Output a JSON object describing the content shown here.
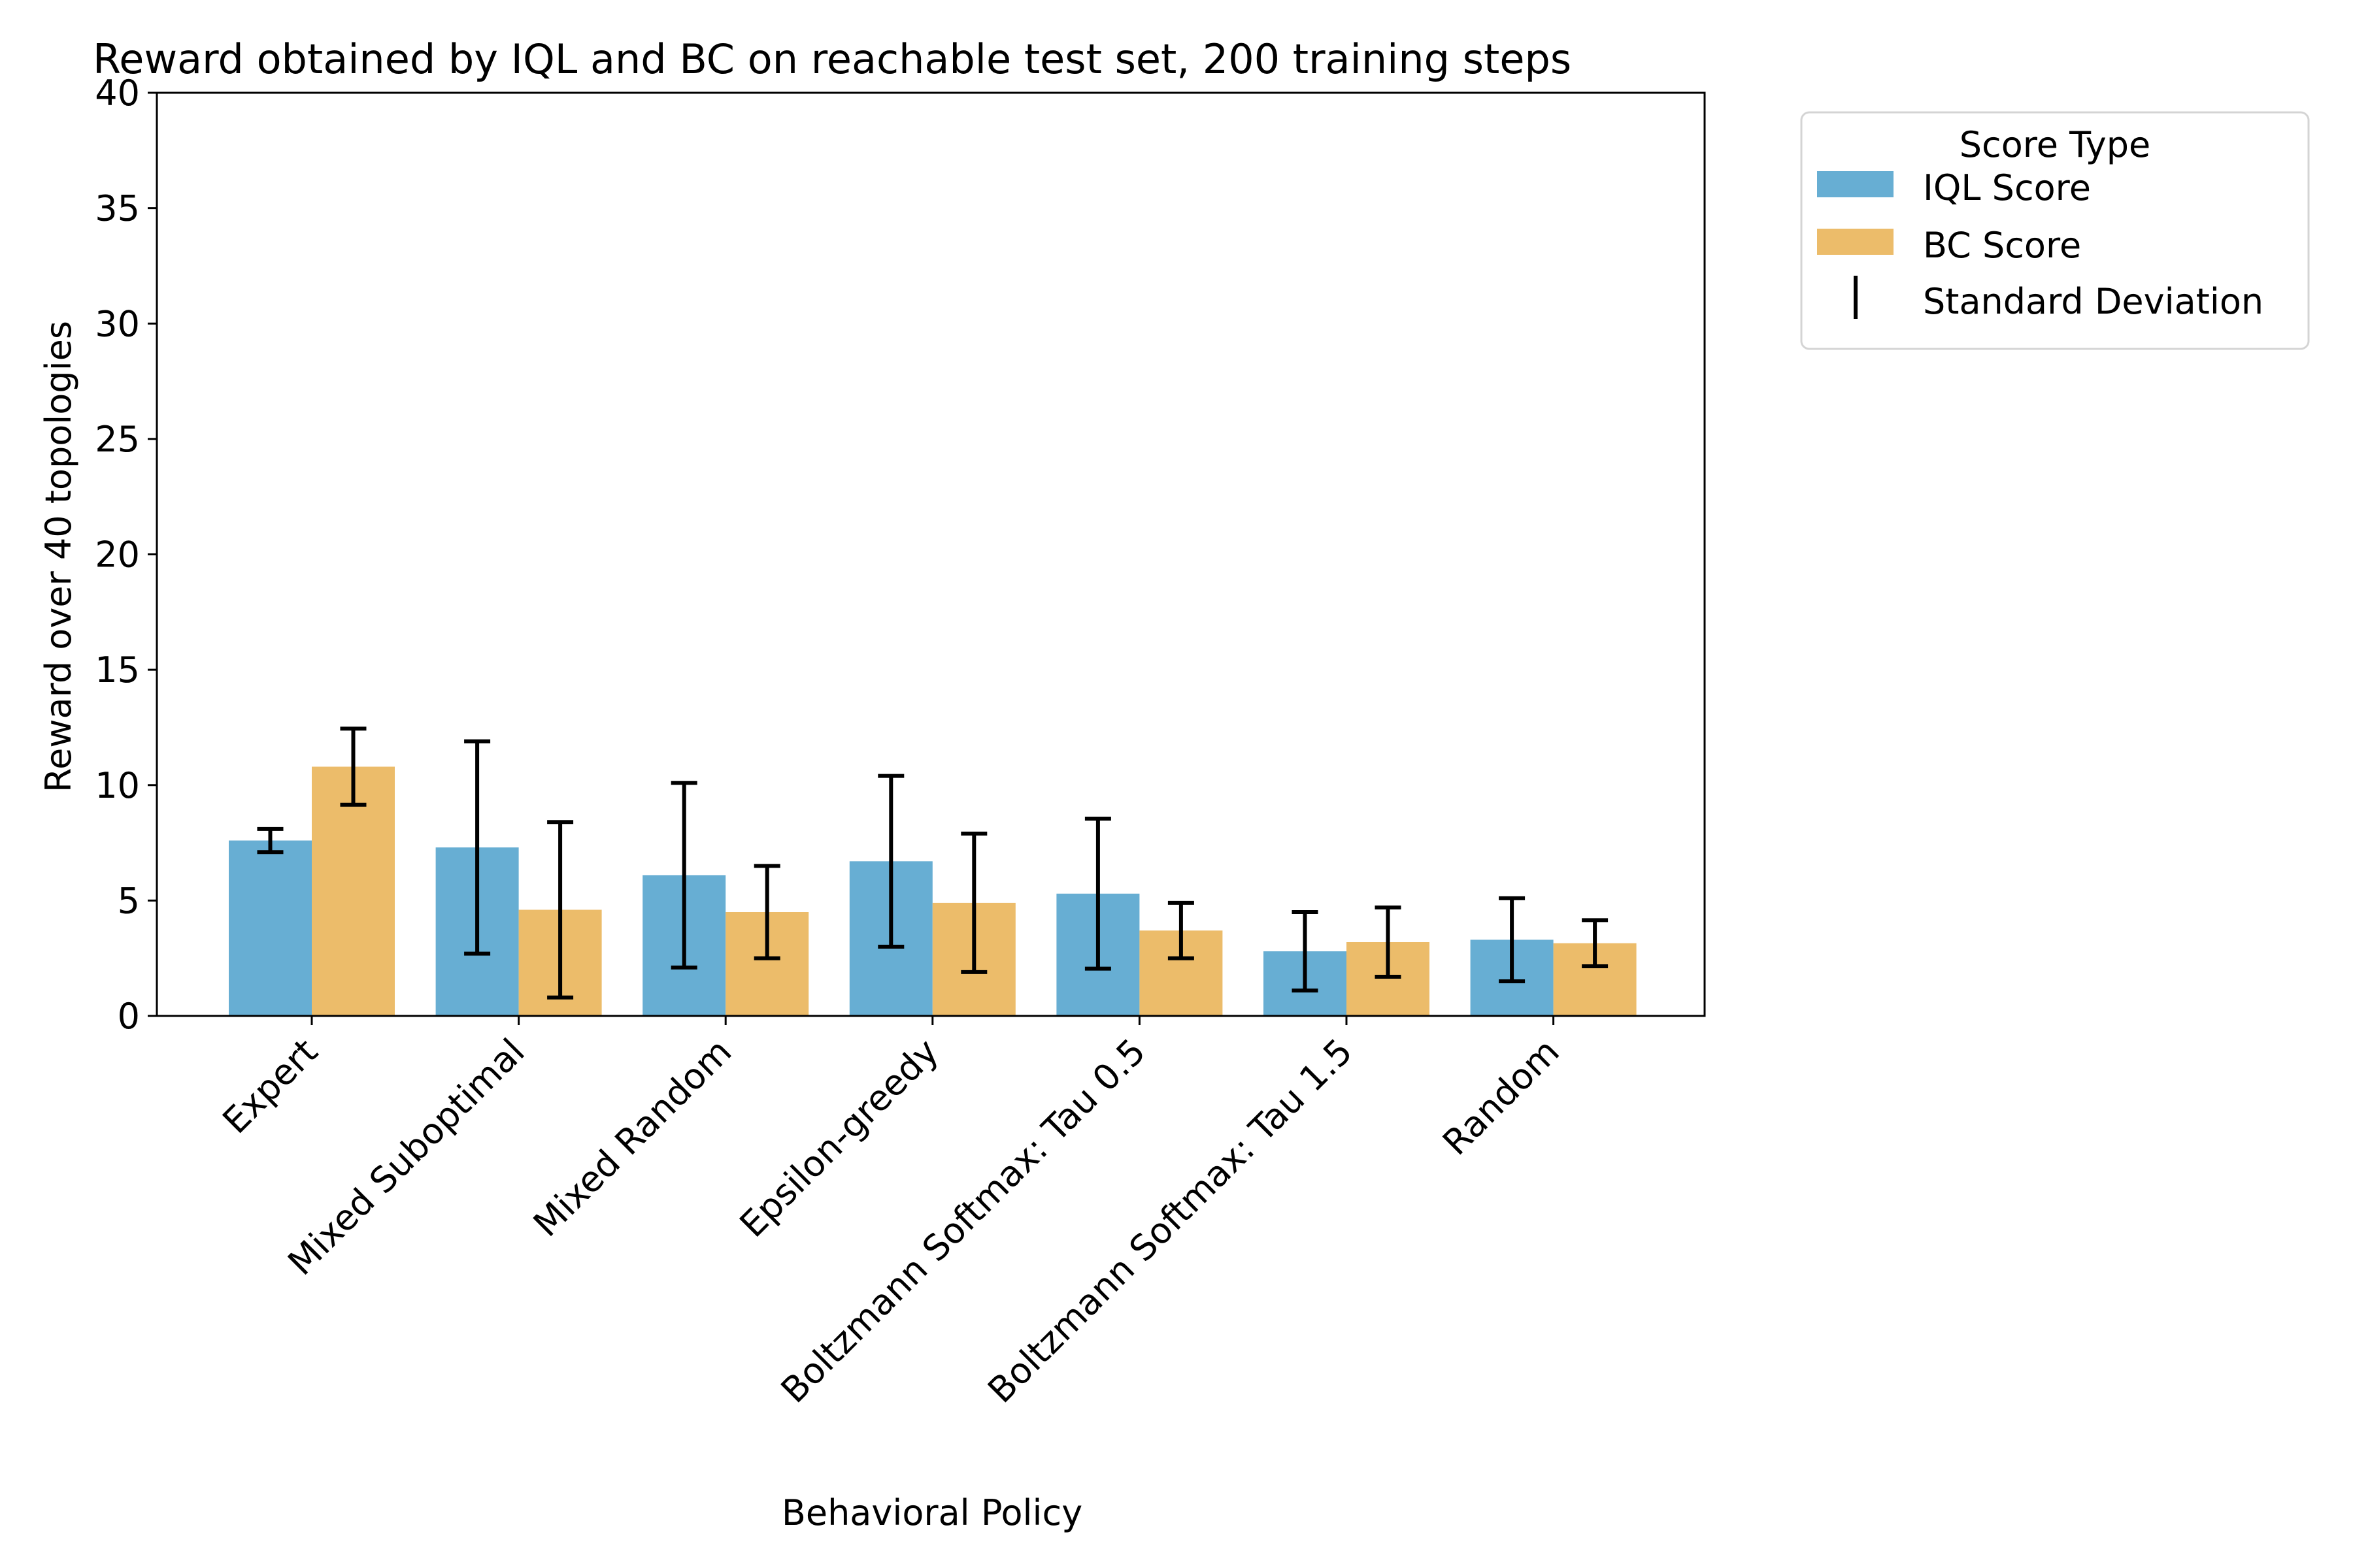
{
  "chart_data": {
    "type": "bar",
    "title": "Reward obtained by IQL and BC on reachable test set, 200 training steps",
    "xlabel": "Behavioral Policy",
    "ylabel": "Reward over 40 topologies",
    "ylim": [
      0,
      40
    ],
    "yticks": [
      0,
      5,
      10,
      15,
      20,
      25,
      30,
      35,
      40
    ],
    "categories": [
      "Expert",
      "Mixed Suboptimal",
      "Mixed Random",
      "Epsilon-greedy",
      "Boltzmann Softmax: Tau 0.5",
      "Boltzmann Softmax: Tau 1.5",
      "Random"
    ],
    "series": [
      {
        "name": "IQL Score",
        "color": "#67aed3",
        "values": [
          7.6,
          7.3,
          6.1,
          6.7,
          5.3,
          2.8,
          3.3
        ],
        "std": [
          0.5,
          4.6,
          4.0,
          3.7,
          3.25,
          1.7,
          1.8
        ]
      },
      {
        "name": "BC Score",
        "color": "#ecbc6a",
        "values": [
          10.8,
          4.6,
          4.5,
          4.9,
          3.7,
          3.2,
          3.15
        ],
        "std": [
          1.65,
          3.8,
          2.0,
          3.0,
          1.2,
          1.5,
          1.0
        ]
      }
    ],
    "legend": {
      "title": "Score Type",
      "errorbar_label": "Standard Deviation",
      "placement": "outside-top-right"
    },
    "grid": false
  }
}
